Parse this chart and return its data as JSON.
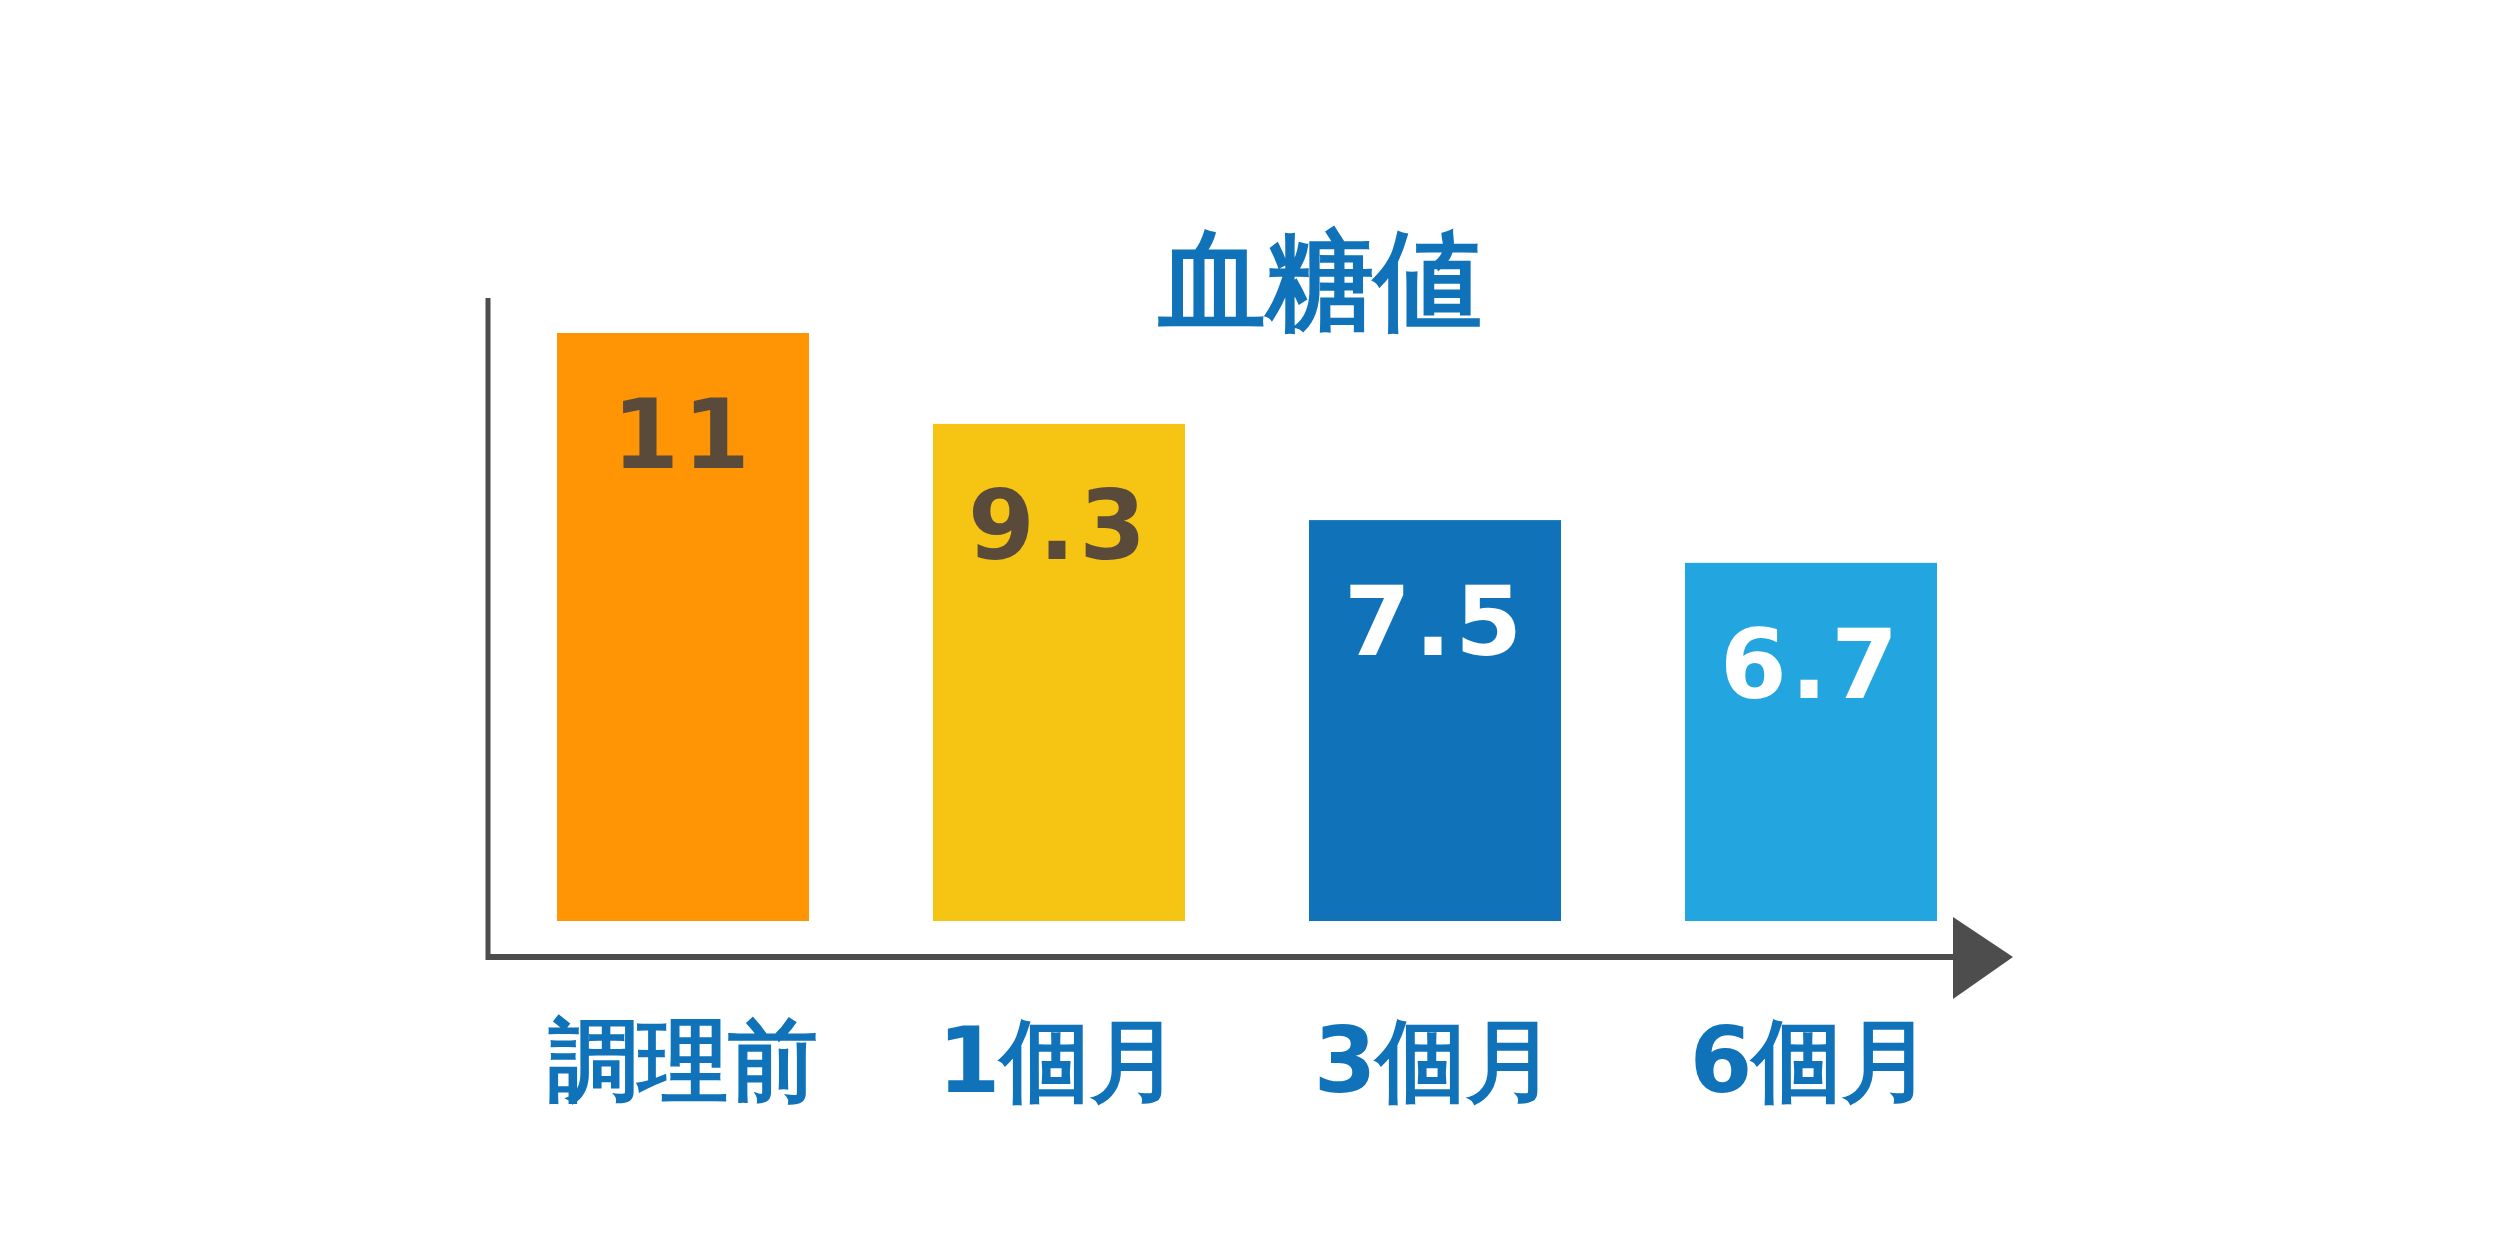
{
  "chart_data": {
    "type": "bar",
    "title": "血糖値",
    "categories": [
      "調理前",
      "1個月",
      "3個月",
      "6個月"
    ],
    "values": [
      11,
      9.3,
      7.5,
      6.7
    ],
    "colors": [
      "#ff9505",
      "#f6c413",
      "#1073b9",
      "#23a6df"
    ],
    "data_labels": true
  }
}
